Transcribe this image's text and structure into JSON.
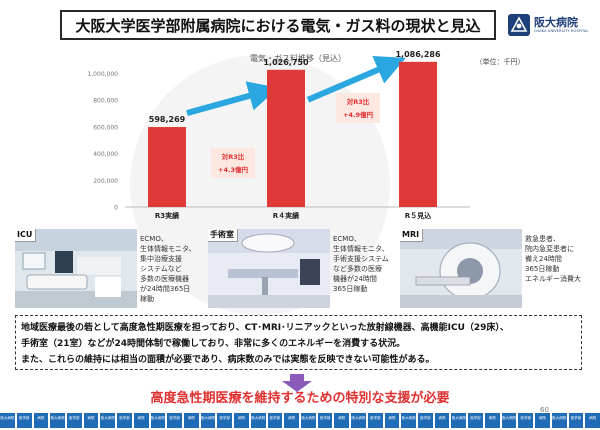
{
  "slide": {
    "title": "大阪大学医学部附属病院における電気・ガス料の現状と見込",
    "page_number": "60",
    "colors": {
      "bar": "#e03a38",
      "arrow": "#2aa6e0",
      "accent_text": "#e03030",
      "title_border": "#2a2a2a"
    }
  },
  "logo": {
    "name": "阪大病院",
    "subtitle": "OSAKA UNIVERSITY HOSPITAL",
    "icon": "university-hospital-logo"
  },
  "chart_data": {
    "type": "bar",
    "title": "電気・ガス料推移（見込）",
    "unit": "（単位：千円）",
    "categories": [
      "R3実績",
      "R４実績",
      "R５見込"
    ],
    "values": [
      598269,
      1026750,
      1086286
    ],
    "value_labels": [
      "598,269",
      "1,026,750",
      "1,086,286"
    ],
    "yticks": [
      0,
      200000,
      400000,
      600000,
      800000,
      1000000
    ],
    "ytick_labels": [
      "0",
      "200,000",
      "400,000",
      "600,000",
      "800,000",
      "1,000,000"
    ],
    "ylim": [
      0,
      1100000
    ],
    "grid": false,
    "annotations": [
      {
        "line1": "対R3比",
        "line2": "+4.3億円",
        "from": "R3実績",
        "to": "R４実績"
      },
      {
        "line1": "対R3比",
        "line2": "+4.9億円",
        "from": "R3実績",
        "to": "R５見込"
      }
    ]
  },
  "photos": [
    {
      "label": "ICU",
      "icon": "icu-photo",
      "text": "ECMO、\n生体情報モニタ、\n集中治療支援\nシステムなど\n多数の医療機器\nが24時間365日\n稼動"
    },
    {
      "label": "手術室",
      "icon": "operating-room-photo",
      "text": "ECMO、\n生体情報モニタ、\n手術支援システム\nなど多数の医療\n機器が24時間\n365日稼動"
    },
    {
      "label": "MRI",
      "icon": "mri-photo",
      "text": "救急患者、\n院内急変患者に\n備え24時間\n365日稼動\nエネルギー消費大"
    }
  ],
  "description": {
    "lines": [
      "地域医療最後の砦として高度急性期医療を担っており、CT･MRI･リニアックといった放射線機器、高機能ICU（29床）、",
      "手術室（21室）などが24時間体制で稼働しており、非常に多くのエネルギーを消費する状況。",
      "また、これらの維持には相当の面積が必要であり、病床数のみでは実態を反映できない可能性がある。"
    ]
  },
  "conclusion": "高度急性期医療を維持するための特別な支援が必要",
  "footer": {
    "tiles": [
      "阪大病院",
      "医学部",
      "病院",
      "阪大病院",
      "医学部",
      "病院",
      "阪大病院",
      "医学部",
      "病院",
      "阪大病院",
      "医学部",
      "病院",
      "阪大病院",
      "医学部",
      "病院",
      "阪大病院",
      "医学部",
      "病院",
      "阪大病院",
      "医学部",
      "病院",
      "阪大病院",
      "医学部",
      "病院",
      "阪大病院",
      "医学部",
      "病院",
      "阪大病院",
      "医学部",
      "病院",
      "阪大病院",
      "医学部",
      "病院",
      "阪大病院",
      "医学部",
      "病院"
    ]
  }
}
